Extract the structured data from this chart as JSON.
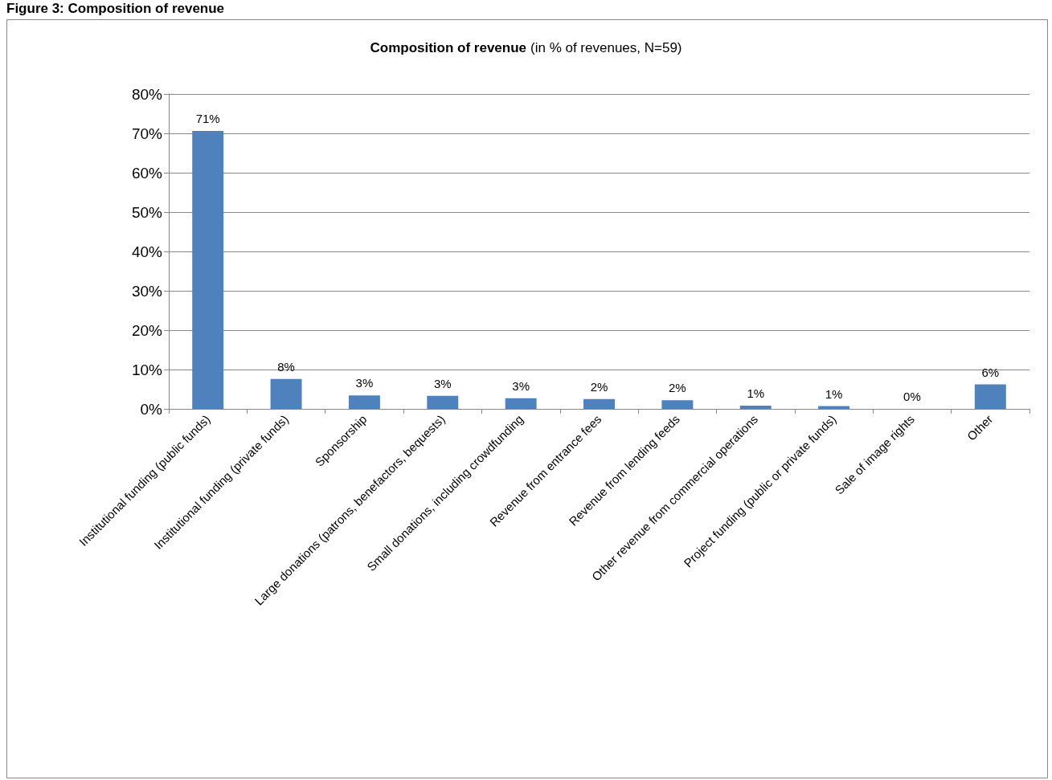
{
  "chart_data": {
    "type": "bar",
    "title": "Composition of revenue",
    "subtitle": "(in % of revenues, N=59)",
    "annotations": [
      "Figure 3: Composition of revenue"
    ],
    "categories": [
      "Institutional funding (public funds)",
      "Institutional funding (private funds)",
      "Sponsorship",
      "Large donations (patrons, benefactors, bequests)",
      "Small donations, including crowdfunding",
      "Revenue from entrance fees",
      "Revenue from lending feeds",
      "Other revenue from commercial operations",
      "Project funding (public or private funds)",
      "Sale of image rights",
      "Other"
    ],
    "values": [
      70.6,
      7.6,
      3.4,
      3.3,
      2.7,
      2.5,
      2.2,
      0.8,
      0.7,
      0,
      6.2
    ],
    "value_labels": [
      "71%",
      "8%",
      "3%",
      "3%",
      "3%",
      "2%",
      "2%",
      "1%",
      "1%",
      "0%",
      "6%"
    ],
    "color": "#4f81bd",
    "ylim": [
      0,
      80
    ],
    "yticks": [
      {
        "value": 0,
        "label": "0%"
      },
      {
        "value": 10,
        "label": "10%"
      },
      {
        "value": 20,
        "label": "20%"
      },
      {
        "value": 30,
        "label": "30%"
      },
      {
        "value": 40,
        "label": "40%"
      },
      {
        "value": 50,
        "label": "50%"
      },
      {
        "value": 60,
        "label": "60%"
      },
      {
        "value": 70,
        "label": "70%"
      },
      {
        "value": 80,
        "label": "80%"
      }
    ],
    "grid": "y"
  }
}
